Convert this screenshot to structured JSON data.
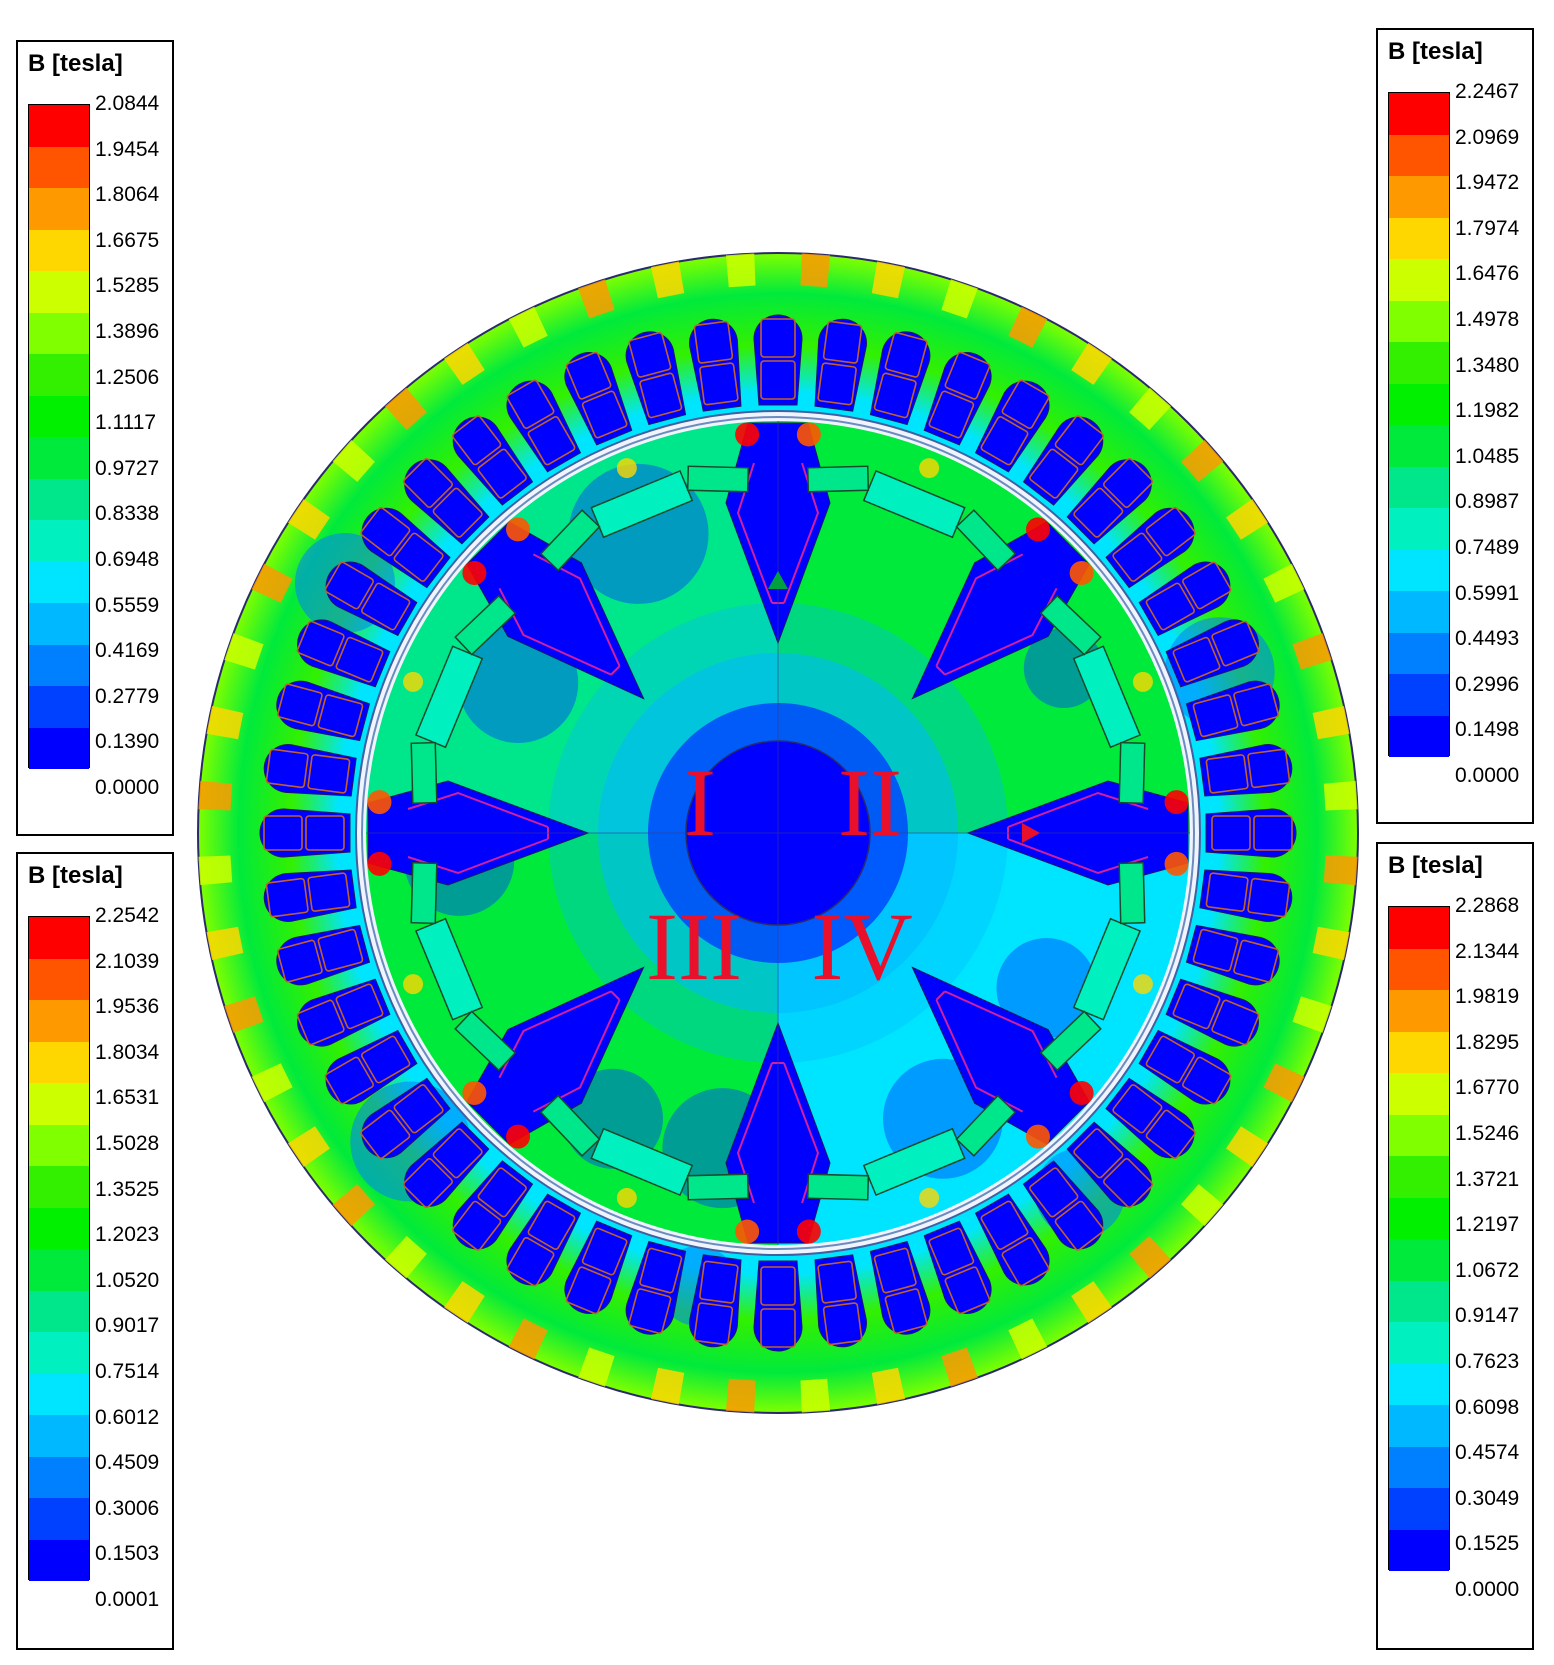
{
  "colors": [
    "#0000ff",
    "#0040ff",
    "#0080ff",
    "#00b8ff",
    "#00e5ff",
    "#00f0c0",
    "#00e68a",
    "#00ea3c",
    "#00f000",
    "#33f000",
    "#7fff00",
    "#ccff00",
    "#ffd700",
    "#ff9900",
    "#ff5500",
    "#ff0000"
  ],
  "legends": [
    {
      "title": "B [tesla]",
      "ticks": [
        "2.0844",
        "1.9454",
        "1.8064",
        "1.6675",
        "1.5285",
        "1.3896",
        "1.2506",
        "1.1117",
        "0.9727",
        "0.8338",
        "0.6948",
        "0.5559",
        "0.4169",
        "0.2779",
        "0.1390",
        "0.0000"
      ]
    },
    {
      "title": "B [tesla]",
      "ticks": [
        "2.2542",
        "2.1039",
        "1.9536",
        "1.8034",
        "1.6531",
        "1.5028",
        "1.3525",
        "1.2023",
        "1.0520",
        "0.9017",
        "0.7514",
        "0.6012",
        "0.4509",
        "0.3006",
        "0.1503",
        "0.0001"
      ]
    },
    {
      "title": "B [tesla]",
      "ticks": [
        "2.2467",
        "2.0969",
        "1.9472",
        "1.7974",
        "1.6476",
        "1.4978",
        "1.3480",
        "1.1982",
        "1.0485",
        "0.8987",
        "0.7489",
        "0.5991",
        "0.4493",
        "0.2996",
        "0.1498",
        "0.0000"
      ]
    },
    {
      "title": "B [tesla]",
      "ticks": [
        "2.2868",
        "2.1344",
        "1.9819",
        "1.8295",
        "1.6770",
        "1.5246",
        "1.3721",
        "1.2197",
        "1.0672",
        "0.9147",
        "0.7623",
        "0.6098",
        "0.4574",
        "0.3049",
        "0.1525",
        "0.0000"
      ]
    }
  ],
  "quadrant_labels": {
    "q1": "I",
    "q2": "II",
    "q3": "III",
    "q4": "IV"
  }
}
